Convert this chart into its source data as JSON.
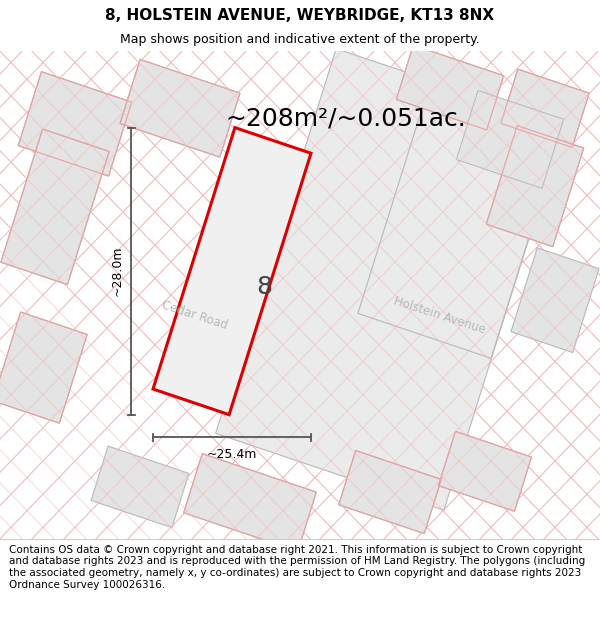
{
  "title": "8, HOLSTEIN AVENUE, WEYBRIDGE, KT13 8NX",
  "subtitle": "Map shows position and indicative extent of the property.",
  "area_label": "~208m²/~0.051ac.",
  "plot_number": "8",
  "width_label": "~25.4m",
  "height_label": "~28.0m",
  "footer": "Contains OS data © Crown copyright and database right 2021. This information is subject to Crown copyright and database rights 2023 and is reproduced with the permission of HM Land Registry. The polygons (including the associated geometry, namely x, y co-ordinates) are subject to Crown copyright and database rights 2023 Ordnance Survey 100026316.",
  "road_label_1": "Cedar Road",
  "road_label_2": "Holstein Avenue",
  "bg_color": "#f2f2f2",
  "parcel_fill": "#e4e4e4",
  "parcel_edge_gray": "#b8b8b8",
  "parcel_edge_pink": "#e8a0a0",
  "main_parcel_fill": "#ebebeb",
  "red_poly_fill": "#f0f0f0",
  "plot_edge": "#dd0000",
  "diag_color": "#f0b8b8",
  "title_fontsize": 11,
  "subtitle_fontsize": 9,
  "area_fontsize": 18,
  "footer_fontsize": 7.5,
  "plot_number_fontsize": 18,
  "dim_fontsize": 9,
  "road_fontsize": 8.5
}
